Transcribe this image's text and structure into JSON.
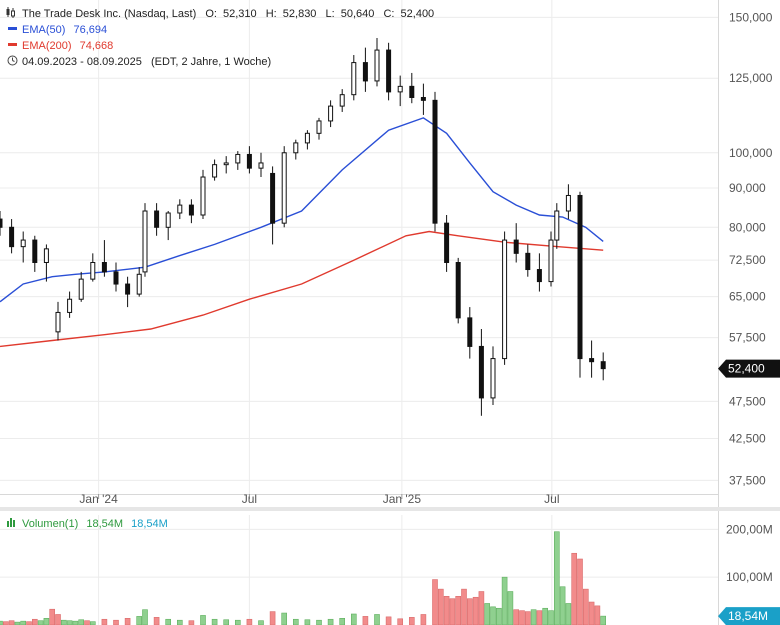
{
  "header": {
    "instrument": "The Trade Desk Inc. (Nasdaq, Last)",
    "ohlc": {
      "o_label": "O:",
      "o": "52,310",
      "h_label": "H:",
      "h": "52,830",
      "l_label": "L:",
      "l": "50,640",
      "c_label": "C:",
      "c": "52,400"
    },
    "ema50": {
      "label": "EMA(50)",
      "value": "76,694"
    },
    "ema200": {
      "label": "EMA(200)",
      "value": "74,668"
    },
    "range": "04.09.2023 - 08.09.2025",
    "range_note": "(EDT, 2 Jahre, 1 Woche)",
    "volume": {
      "label": "Volumen(1)",
      "value_a": "18,54M",
      "value_b": "18,54M"
    }
  },
  "colors": {
    "ema50": "#2a4fd6",
    "ema200": "#e03a2e",
    "vol_up": "#8fd08f",
    "vol_down": "#f28b8b",
    "last_badge": "#111111",
    "vol_badge": "#1aa0c8"
  },
  "icons": {
    "chart": "candlestick-icon",
    "clock": "clock-icon",
    "volume": "volume-bars-icon"
  },
  "chart_data": {
    "type": "candlestick",
    "price_axis": {
      "scale": "log",
      "range": [
        36000,
        158000
      ],
      "ticks": [
        37500,
        42500,
        47500,
        57500,
        65000,
        72500,
        80000,
        90000,
        100000,
        125000,
        150000
      ],
      "tick_labels": [
        "37,500",
        "42,500",
        "47,500",
        "57,500",
        "65,000",
        "72,500",
        "80,000",
        "90,000",
        "100,000",
        "125,000",
        "150,000"
      ]
    },
    "volume_axis": {
      "range": [
        0,
        230
      ],
      "unit": "M",
      "ticks": [
        100,
        200
      ],
      "tick_labels": [
        "100,00M",
        "200,00M"
      ]
    },
    "x_axis": {
      "range": [
        "2023-09-04",
        "2025-09-08"
      ],
      "ticks": [
        "2024-01-01",
        "2024-07-01",
        "2025-01-01",
        "2025-07-01"
      ],
      "tick_labels": [
        "Jan '24",
        "Jul",
        "Jan '25",
        "Jul"
      ]
    },
    "last_price": {
      "value": 52400,
      "label": "52,400"
    },
    "last_volume": {
      "value": 18.54,
      "label": "18,54M"
    },
    "candles": [
      [
        "2023-09-04",
        82.0,
        84.0,
        78.0,
        80.0
      ],
      [
        "2023-09-18",
        80.0,
        82.0,
        74.0,
        75.5
      ],
      [
        "2023-10-02",
        75.5,
        79.0,
        72.0,
        77.0
      ],
      [
        "2023-10-16",
        77.0,
        78.0,
        70.0,
        72.0
      ],
      [
        "2023-10-30",
        72.0,
        76.0,
        68.0,
        75.0
      ],
      [
        "2023-11-13",
        58.5,
        64.0,
        57.0,
        62.0
      ],
      [
        "2023-11-27",
        62.0,
        66.0,
        61.0,
        64.5
      ],
      [
        "2023-12-11",
        64.5,
        70.0,
        64.0,
        68.5
      ],
      [
        "2023-12-25",
        68.5,
        74.0,
        68.0,
        72.0
      ],
      [
        "2024-01-08",
        72.0,
        77.0,
        69.0,
        70.0
      ],
      [
        "2024-01-22",
        70.0,
        72.0,
        66.0,
        67.5
      ],
      [
        "2024-02-05",
        67.5,
        69.0,
        63.0,
        65.5
      ],
      [
        "2024-02-19",
        65.5,
        71.0,
        65.0,
        69.5
      ],
      [
        "2024-02-26",
        70.0,
        86.0,
        69.0,
        84.0
      ],
      [
        "2024-03-11",
        84.0,
        86.0,
        78.0,
        80.0
      ],
      [
        "2024-03-25",
        80.0,
        84.0,
        77.0,
        83.5
      ],
      [
        "2024-04-08",
        83.5,
        87.0,
        82.0,
        85.5
      ],
      [
        "2024-04-22",
        85.5,
        87.0,
        81.0,
        83.0
      ],
      [
        "2024-05-06",
        83.0,
        95.0,
        82.0,
        93.0
      ],
      [
        "2024-05-20",
        93.0,
        98.0,
        92.0,
        96.5
      ],
      [
        "2024-06-03",
        96.5,
        99.0,
        94.0,
        97.0
      ],
      [
        "2024-06-17",
        97.0,
        100.5,
        95.0,
        99.5
      ],
      [
        "2024-07-01",
        99.5,
        102.0,
        94.0,
        95.5
      ],
      [
        "2024-07-15",
        95.5,
        100.0,
        93.0,
        97.0
      ],
      [
        "2024-07-29",
        94.0,
        96.0,
        76.0,
        81.0
      ],
      [
        "2024-08-12",
        81.0,
        102.0,
        80.0,
        100.0
      ],
      [
        "2024-08-26",
        100.0,
        104.0,
        98.0,
        103.0
      ],
      [
        "2024-09-09",
        103.0,
        107.0,
        101.0,
        106.0
      ],
      [
        "2024-09-23",
        106.0,
        111.0,
        104.0,
        110.0
      ],
      [
        "2024-10-07",
        110.0,
        117.0,
        108.0,
        115.0
      ],
      [
        "2024-10-21",
        115.0,
        121.0,
        113.0,
        119.0
      ],
      [
        "2024-11-04",
        119.0,
        134.0,
        117.0,
        131.0
      ],
      [
        "2024-11-18",
        131.0,
        137.0,
        120.0,
        124.0
      ],
      [
        "2024-12-02",
        124.0,
        141.0,
        122.0,
        136.0
      ],
      [
        "2024-12-16",
        136.0,
        139.0,
        117.0,
        120.0
      ],
      [
        "2024-12-30",
        120.0,
        126.0,
        115.0,
        122.0
      ],
      [
        "2025-01-13",
        122.0,
        127.0,
        116.0,
        118.0
      ],
      [
        "2025-01-27",
        118.0,
        123.0,
        112.0,
        117.0
      ],
      [
        "2025-02-10",
        117.0,
        120.0,
        79.0,
        81.0
      ],
      [
        "2025-02-24",
        81.0,
        83.0,
        70.0,
        72.0
      ],
      [
        "2025-03-10",
        72.0,
        73.0,
        60.0,
        61.0
      ],
      [
        "2025-03-24",
        61.0,
        63.0,
        54.0,
        56.0
      ],
      [
        "2025-04-07",
        56.0,
        59.0,
        45.5,
        48.0
      ],
      [
        "2025-04-21",
        48.0,
        56.0,
        47.0,
        54.0
      ],
      [
        "2025-05-05",
        54.0,
        79.0,
        53.0,
        77.0
      ],
      [
        "2025-05-19",
        77.0,
        81.0,
        72.0,
        74.0
      ],
      [
        "2025-06-02",
        74.0,
        76.0,
        69.0,
        70.5
      ],
      [
        "2025-06-16",
        70.5,
        74.0,
        66.0,
        68.0
      ],
      [
        "2025-06-30",
        68.0,
        79.0,
        67.0,
        77.0
      ],
      [
        "2025-07-07",
        77.0,
        86.0,
        75.0,
        84.0
      ],
      [
        "2025-07-21",
        84.0,
        91.0,
        82.0,
        88.0
      ],
      [
        "2025-08-04",
        88.0,
        89.0,
        51.0,
        54.0
      ],
      [
        "2025-08-18",
        54.0,
        57.0,
        51.0,
        53.5
      ],
      [
        "2025-09-01",
        53.5,
        55.0,
        50.6,
        52.4
      ]
    ],
    "ema50": [
      [
        "2023-09-04",
        64.0
      ],
      [
        "2023-10-02",
        67.5
      ],
      [
        "2023-11-06",
        69.0
      ],
      [
        "2023-12-04",
        69.5
      ],
      [
        "2024-01-08",
        70.0
      ],
      [
        "2024-02-26",
        71.0
      ],
      [
        "2024-04-08",
        73.5
      ],
      [
        "2024-05-20",
        76.0
      ],
      [
        "2024-07-15",
        80.0
      ],
      [
        "2024-09-02",
        84.0
      ],
      [
        "2024-10-21",
        95.0
      ],
      [
        "2024-12-16",
        107.0
      ],
      [
        "2025-01-27",
        111.0
      ],
      [
        "2025-02-24",
        106.0
      ],
      [
        "2025-03-24",
        97.0
      ],
      [
        "2025-04-21",
        89.0
      ],
      [
        "2025-05-19",
        85.5
      ],
      [
        "2025-06-16",
        83.0
      ],
      [
        "2025-07-14",
        82.5
      ],
      [
        "2025-08-11",
        80.0
      ],
      [
        "2025-09-01",
        76.7
      ]
    ],
    "ema200": [
      [
        "2023-09-04",
        56.0
      ],
      [
        "2023-11-06",
        57.0
      ],
      [
        "2024-01-08",
        58.0
      ],
      [
        "2024-03-04",
        59.0
      ],
      [
        "2024-05-06",
        61.5
      ],
      [
        "2024-07-01",
        64.5
      ],
      [
        "2024-09-02",
        67.5
      ],
      [
        "2024-11-04",
        72.5
      ],
      [
        "2025-01-06",
        78.0
      ],
      [
        "2025-02-03",
        79.0
      ],
      [
        "2025-03-10",
        78.0
      ],
      [
        "2025-05-05",
        76.5
      ],
      [
        "2025-07-07",
        75.5
      ],
      [
        "2025-09-01",
        74.7
      ]
    ],
    "volume": [
      [
        "2023-09-04",
        8,
        "up"
      ],
      [
        "2023-09-11",
        7,
        "down"
      ],
      [
        "2023-09-18",
        9,
        "down"
      ],
      [
        "2023-09-25",
        6,
        "up"
      ],
      [
        "2023-10-02",
        8,
        "up"
      ],
      [
        "2023-10-09",
        7,
        "down"
      ],
      [
        "2023-10-16",
        12,
        "down"
      ],
      [
        "2023-10-23",
        9,
        "up"
      ],
      [
        "2023-10-30",
        14,
        "up"
      ],
      [
        "2023-11-06",
        33,
        "down"
      ],
      [
        "2023-11-13",
        22,
        "down"
      ],
      [
        "2023-11-20",
        10,
        "up"
      ],
      [
        "2023-11-27",
        9,
        "up"
      ],
      [
        "2023-12-04",
        8,
        "up"
      ],
      [
        "2023-12-11",
        11,
        "up"
      ],
      [
        "2023-12-18",
        9,
        "down"
      ],
      [
        "2023-12-25",
        7,
        "up"
      ],
      [
        "2024-01-08",
        12,
        "down"
      ],
      [
        "2024-01-22",
        10,
        "down"
      ],
      [
        "2024-02-05",
        14,
        "down"
      ],
      [
        "2024-02-19",
        18,
        "up"
      ],
      [
        "2024-02-26",
        32,
        "up"
      ],
      [
        "2024-03-11",
        16,
        "down"
      ],
      [
        "2024-03-25",
        12,
        "up"
      ],
      [
        "2024-04-08",
        10,
        "up"
      ],
      [
        "2024-04-22",
        9,
        "down"
      ],
      [
        "2024-05-06",
        20,
        "up"
      ],
      [
        "2024-05-20",
        12,
        "up"
      ],
      [
        "2024-06-03",
        11,
        "up"
      ],
      [
        "2024-06-17",
        10,
        "up"
      ],
      [
        "2024-07-01",
        12,
        "down"
      ],
      [
        "2024-07-15",
        9,
        "up"
      ],
      [
        "2024-07-29",
        28,
        "down"
      ],
      [
        "2024-08-12",
        25,
        "up"
      ],
      [
        "2024-08-26",
        12,
        "up"
      ],
      [
        "2024-09-09",
        11,
        "up"
      ],
      [
        "2024-09-23",
        10,
        "up"
      ],
      [
        "2024-10-07",
        12,
        "up"
      ],
      [
        "2024-10-21",
        14,
        "up"
      ],
      [
        "2024-11-04",
        23,
        "up"
      ],
      [
        "2024-11-18",
        18,
        "down"
      ],
      [
        "2024-12-02",
        22,
        "up"
      ],
      [
        "2024-12-16",
        17,
        "down"
      ],
      [
        "2024-12-30",
        13,
        "down"
      ],
      [
        "2025-01-13",
        16,
        "down"
      ],
      [
        "2025-01-27",
        22,
        "down"
      ],
      [
        "2025-02-10",
        95,
        "down"
      ],
      [
        "2025-02-17",
        75,
        "down"
      ],
      [
        "2025-02-24",
        60,
        "down"
      ],
      [
        "2025-03-03",
        55,
        "down"
      ],
      [
        "2025-03-10",
        60,
        "down"
      ],
      [
        "2025-03-17",
        75,
        "down"
      ],
      [
        "2025-03-24",
        55,
        "down"
      ],
      [
        "2025-03-31",
        58,
        "down"
      ],
      [
        "2025-04-07",
        70,
        "down"
      ],
      [
        "2025-04-14",
        45,
        "up"
      ],
      [
        "2025-04-21",
        38,
        "up"
      ],
      [
        "2025-04-28",
        35,
        "up"
      ],
      [
        "2025-05-05",
        100,
        "up"
      ],
      [
        "2025-05-12",
        70,
        "up"
      ],
      [
        "2025-05-19",
        32,
        "down"
      ],
      [
        "2025-05-26",
        30,
        "down"
      ],
      [
        "2025-06-02",
        28,
        "down"
      ],
      [
        "2025-06-09",
        32,
        "up"
      ],
      [
        "2025-06-16",
        30,
        "down"
      ],
      [
        "2025-06-23",
        35,
        "up"
      ],
      [
        "2025-06-30",
        30,
        "up"
      ],
      [
        "2025-07-07",
        195,
        "up"
      ],
      [
        "2025-07-14",
        80,
        "up"
      ],
      [
        "2025-07-21",
        45,
        "up"
      ],
      [
        "2025-07-28",
        150,
        "down"
      ],
      [
        "2025-08-04",
        138,
        "down"
      ],
      [
        "2025-08-11",
        75,
        "down"
      ],
      [
        "2025-08-18",
        48,
        "down"
      ],
      [
        "2025-08-25",
        40,
        "down"
      ],
      [
        "2025-09-01",
        18.54,
        "up"
      ]
    ]
  }
}
